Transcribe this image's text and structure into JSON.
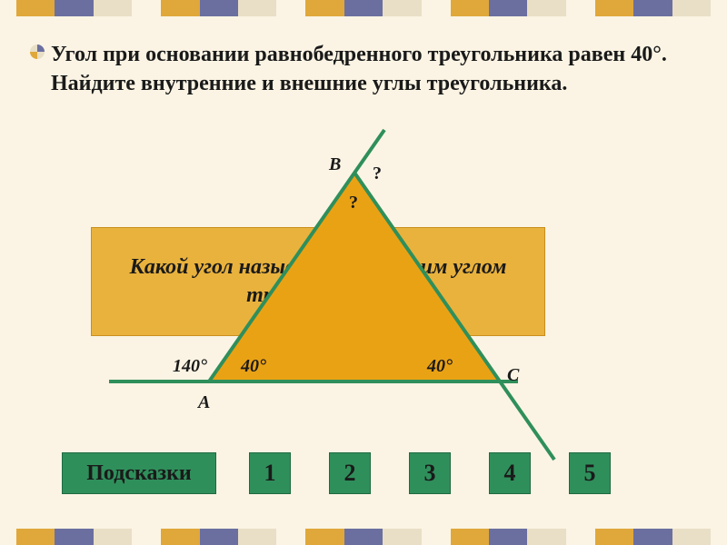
{
  "problem": "Угол при основании равнобедренного треугольника равен 40°. Найдите внутренние и внешние углы треугольника.",
  "hintBox": "Какой угол называется внешним углом треугольника?",
  "labels": {
    "A": "A",
    "B": "B",
    "C": "C",
    "angA_ext": "140°",
    "angA_int": "40°",
    "angC_int": "40°",
    "q_top_int": "?",
    "q_top_ext": "?"
  },
  "buttons": {
    "hints": "Подсказки",
    "nums": [
      "1",
      "2",
      "3",
      "4",
      "5"
    ]
  },
  "colors": {
    "triangleFill": "#eaa215",
    "lineStroke": "#2f8f5b",
    "bg": "#fbf4e4",
    "barGold": "#e0a83a",
    "barPurple": "#6b6fa0",
    "barCream": "#e8dfc6",
    "btn": "#2f8f5b"
  },
  "geometry": {
    "A": [
      130,
      250
    ],
    "B": [
      290,
      20
    ],
    "C": [
      450,
      250
    ],
    "baseLine": [
      [
        20,
        250
      ],
      [
        470,
        250
      ]
    ],
    "leftExt": [
      [
        130,
        250
      ],
      [
        323,
        -27
      ]
    ],
    "rightExt": [
      [
        450,
        250
      ],
      [
        510,
        336
      ]
    ]
  }
}
